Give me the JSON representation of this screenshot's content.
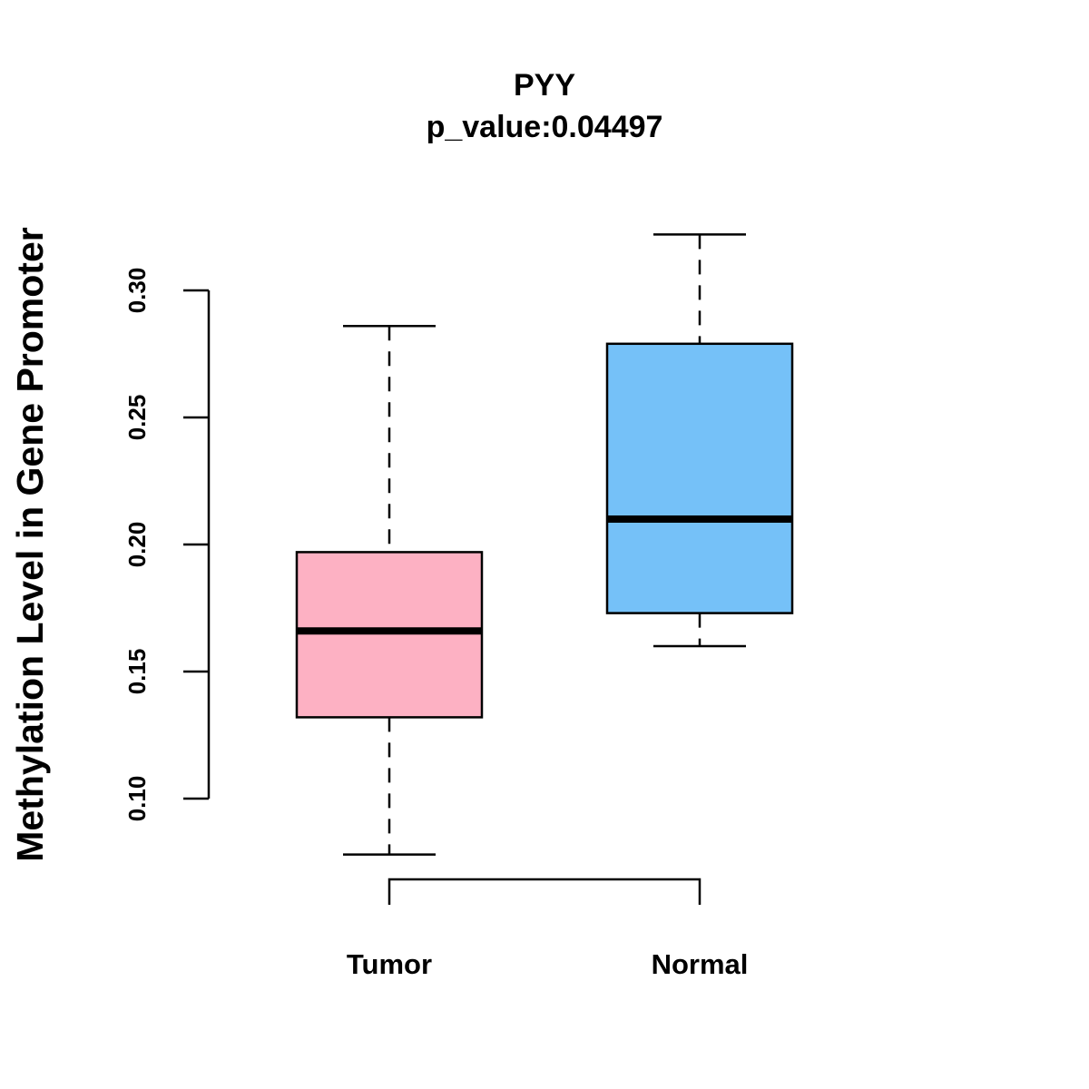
{
  "chart_data": {
    "type": "boxplot",
    "title": "PYY",
    "subtitle": "p_value:0.04497",
    "xlabel": "",
    "ylabel": "Methylation Level in Gene Promoter",
    "ylim": [
      0.06,
      0.34
    ],
    "yticks": [
      0.1,
      0.15,
      0.2,
      0.25,
      0.3
    ],
    "ytick_labels": [
      "0.10",
      "0.15",
      "0.20",
      "0.25",
      "0.30"
    ],
    "grid": false,
    "categories": [
      "Tumor",
      "Normal"
    ],
    "boxes": [
      {
        "name": "Tumor",
        "whisker_low": 0.078,
        "q1": 0.132,
        "median": 0.166,
        "q3": 0.197,
        "whisker_high": 0.286,
        "color": "#FDB1C3"
      },
      {
        "name": "Normal",
        "whisker_low": 0.16,
        "q1": 0.173,
        "median": 0.21,
        "q3": 0.279,
        "whisker_high": 0.322,
        "color": "#75C1F8"
      }
    ]
  }
}
